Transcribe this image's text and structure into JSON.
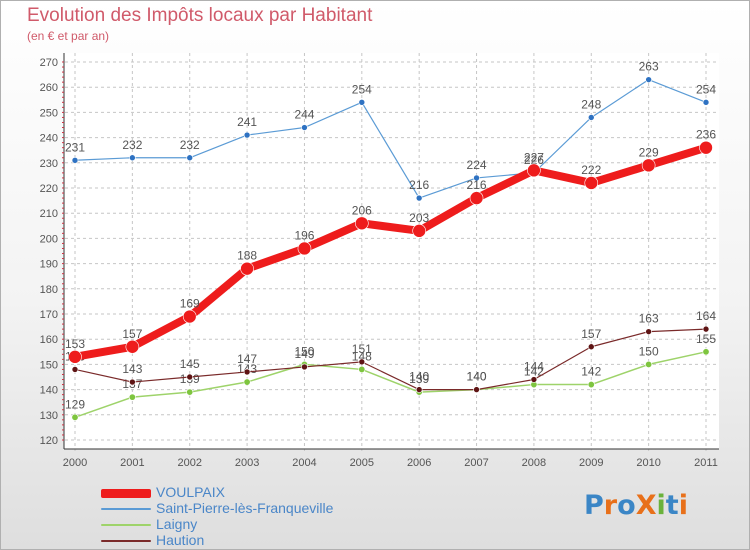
{
  "header": {
    "title": "Evolution des Impôts locaux par Habitant",
    "subtitle": "(en € et par an)"
  },
  "logo": {
    "text": "ProXiti",
    "letter_colors": [
      "#3b86c6",
      "#e8701a",
      "#3b86c6",
      "#e8701a",
      "#6ab23b",
      "#3b86c6",
      "#e8701a"
    ]
  },
  "chart_data": {
    "type": "line",
    "title": "Evolution des Impôts locaux par Habitant",
    "subtitle": "(en € et par an)",
    "xlabel": "",
    "ylabel": "",
    "x": [
      "2000",
      "2001",
      "2002",
      "2003",
      "2004",
      "2005",
      "2006",
      "2007",
      "2008",
      "2009",
      "2010",
      "2011"
    ],
    "ylim": [
      120,
      270
    ],
    "yticks": [
      120,
      130,
      140,
      150,
      160,
      170,
      180,
      190,
      200,
      210,
      220,
      230,
      240,
      250,
      260,
      270
    ],
    "grid": "horizontal dashed",
    "legend_position": "bottom-left",
    "series": [
      {
        "name": "Saint-Pierre-lès-Franqueville",
        "color": "#5b9bd5",
        "values": [
          231,
          232,
          232,
          241,
          244,
          254,
          216,
          224,
          226,
          248,
          263,
          254
        ]
      },
      {
        "name": "Laigny",
        "color": "#9ed36a",
        "values": [
          129,
          137,
          139,
          143,
          150,
          148,
          139,
          140,
          142,
          142,
          150,
          155
        ]
      },
      {
        "name": "Haution",
        "color": "#7a2a2a",
        "values": [
          148,
          143,
          145,
          147,
          149,
          151,
          140,
          140,
          144,
          157,
          163,
          164
        ]
      },
      {
        "name": "VOULPAIX",
        "color": "#ee1c1c",
        "values": [
          153,
          157,
          169,
          188,
          196,
          206,
          203,
          216,
          227,
          222,
          229,
          236
        ]
      }
    ],
    "legend_order": [
      "VOULPAIX",
      "Saint-Pierre-lès-Franqueville",
      "Laigny",
      "Haution"
    ]
  }
}
